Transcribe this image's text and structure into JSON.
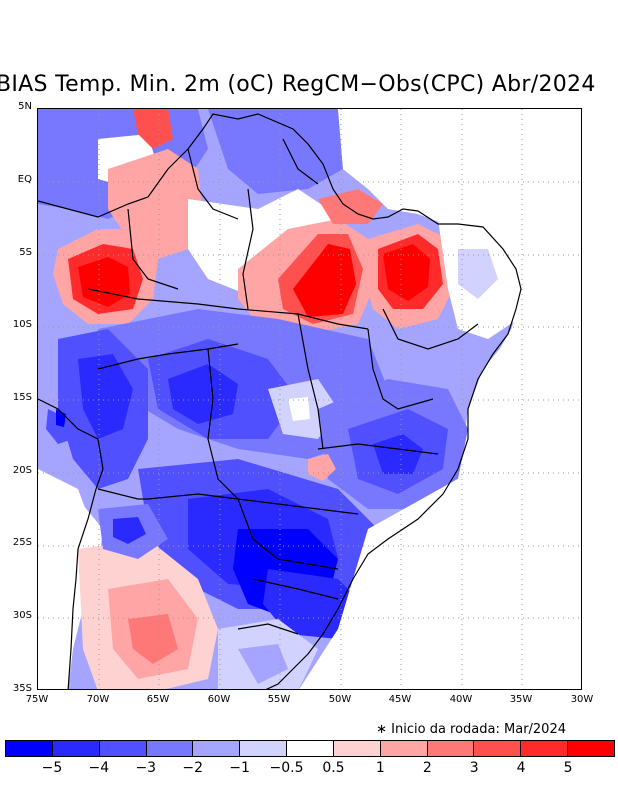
{
  "title": "BIAS Temp. Min. 2m (oC) RegCM−Obs(CPC) Abr/2024",
  "note": "∗ Inicio da rodada: Mar/2024",
  "axes": {
    "lat_labels": [
      "5N",
      "EQ",
      "5S",
      "10S",
      "15S",
      "20S",
      "25S",
      "30S",
      "35S"
    ],
    "lon_labels": [
      "75W",
      "70W",
      "65W",
      "60W",
      "55W",
      "50W",
      "45W",
      "40W",
      "35W",
      "30W"
    ]
  },
  "colorbar": {
    "colors": [
      "#0000ff",
      "#2a2aff",
      "#5050ff",
      "#7878ff",
      "#a5a5ff",
      "#d2d2ff",
      "#ffffff",
      "#ffd2d2",
      "#ffa5a5",
      "#ff7878",
      "#ff5050",
      "#ff2a2a",
      "#ff0000"
    ],
    "labels": [
      "−5",
      "−4",
      "−3",
      "−2",
      "−1",
      "−0.5",
      "0.5",
      "1",
      "2",
      "3",
      "4",
      "5"
    ]
  },
  "map": {
    "regions": [
      {
        "name": "amazon-west-warm",
        "level": 6
      },
      {
        "name": "para-warm",
        "level": 6
      },
      {
        "name": "maranhao-piaui-warm",
        "level": 6
      },
      {
        "name": "roraima-warm",
        "level": 4
      },
      {
        "name": "amapa-warm",
        "level": 2
      },
      {
        "name": "mato-grosso-cold",
        "level": -3
      },
      {
        "name": "bolivia-cold",
        "level": -4
      },
      {
        "name": "paraguay-cold",
        "level": -4
      },
      {
        "name": "south-brazil-cold",
        "level": -5
      },
      {
        "name": "goias-minas-cold",
        "level": -3
      },
      {
        "name": "argentina-warm",
        "level": 2
      }
    ]
  }
}
